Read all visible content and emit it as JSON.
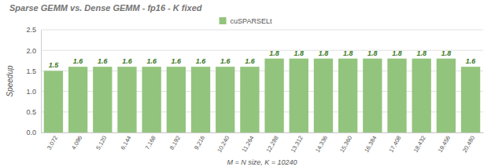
{
  "chart_data": {
    "type": "bar",
    "title": "Sparse GEMM vs. Dense GEMM - fp16 - K fixed",
    "x_label": "M = N size, K = 10240",
    "y_label": "Speedup",
    "categories": [
      "3,072",
      "4,096",
      "5,120",
      "6,144",
      "7,168",
      "8,192",
      "9,216",
      "10,240",
      "11,264",
      "12,288",
      "13,312",
      "14,336",
      "15,360",
      "16,384",
      "17,408",
      "18,432",
      "19,456",
      "20,480"
    ],
    "series": [
      {
        "name": "cuSPARSELt",
        "color": "#93c47d",
        "values": [
          1.5,
          1.6,
          1.6,
          1.6,
          1.6,
          1.6,
          1.6,
          1.6,
          1.6,
          1.8,
          1.8,
          1.8,
          1.8,
          1.8,
          1.8,
          1.8,
          1.8,
          1.6
        ]
      }
    ],
    "ylim": [
      0,
      2.5
    ],
    "yticks": [
      {
        "value": 0,
        "label": "0.0"
      },
      0.5,
      {
        "value": 1,
        "label": "1.0"
      },
      1.5,
      {
        "value": 2,
        "label": "2.0"
      },
      2.5
    ],
    "grid": true,
    "data_labels": true,
    "legend": "top"
  }
}
